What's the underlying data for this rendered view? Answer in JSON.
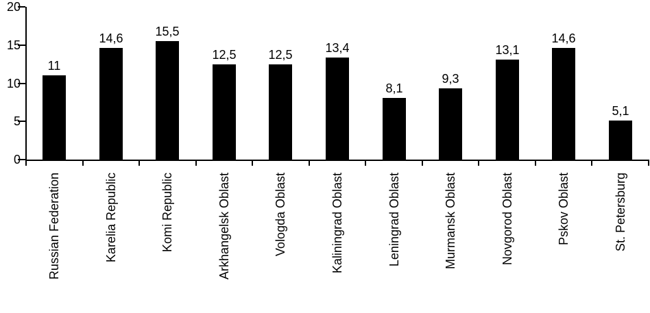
{
  "chart_data": {
    "type": "bar",
    "title": "",
    "xlabel": "",
    "ylabel": "",
    "categories": [
      "Russian Federation",
      "Karelia Republic",
      "Komi Republic",
      "Arkhangelsk Oblast",
      "Vologda Oblast",
      "Kaliningrad Oblast",
      "Leningrad Oblast",
      "Murmansk Oblast",
      "Novgorod Oblast",
      "Pskov Oblast",
      "St. Petersburg"
    ],
    "values": [
      11,
      14.6,
      15.5,
      12.5,
      12.5,
      13.4,
      8.1,
      9.3,
      13.1,
      14.6,
      5.1
    ],
    "value_labels": [
      "11",
      "14,6",
      "15,5",
      "12,5",
      "12,5",
      "13,4",
      "8,1",
      "9,3",
      "13,1",
      "14,6",
      "5,1"
    ],
    "decimal_separator": ",",
    "ylim": [
      0,
      20
    ],
    "yticks": [
      0,
      5,
      10,
      15,
      20
    ],
    "bar_color": "#000000",
    "text_color": "#000000",
    "background_color": "#ffffff",
    "grid": false,
    "legend": false,
    "category_label_rotation_deg": 90
  }
}
